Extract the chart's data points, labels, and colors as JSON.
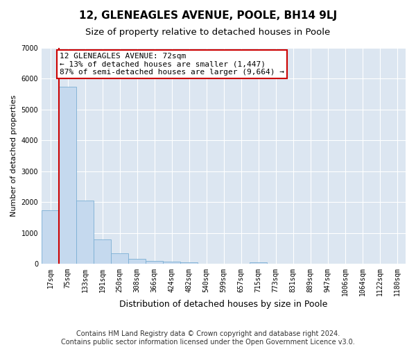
{
  "title": "12, GLENEAGLES AVENUE, POOLE, BH14 9LJ",
  "subtitle": "Size of property relative to detached houses in Poole",
  "xlabel": "Distribution of detached houses by size in Poole",
  "ylabel": "Number of detached properties",
  "bar_labels": [
    "17sqm",
    "75sqm",
    "133sqm",
    "191sqm",
    "250sqm",
    "308sqm",
    "366sqm",
    "424sqm",
    "482sqm",
    "540sqm",
    "599sqm",
    "657sqm",
    "715sqm",
    "773sqm",
    "831sqm",
    "889sqm",
    "947sqm",
    "1006sqm",
    "1064sqm",
    "1122sqm",
    "1180sqm"
  ],
  "bar_values": [
    1750,
    5750,
    2050,
    800,
    350,
    175,
    100,
    80,
    60,
    0,
    0,
    0,
    60,
    0,
    0,
    0,
    0,
    0,
    0,
    0,
    0
  ],
  "bar_color": "#c5d9ee",
  "bar_edge_color": "#7bafd4",
  "annotation_text_line1": "12 GLENEAGLES AVENUE: 72sqm",
  "annotation_text_line2": "← 13% of detached houses are smaller (1,447)",
  "annotation_text_line3": "87% of semi-detached houses are larger (9,664) →",
  "annotation_box_facecolor": "#ffffff",
  "annotation_box_edgecolor": "#cc0000",
  "vline_color": "#cc0000",
  "ylim": [
    0,
    7000
  ],
  "yticks": [
    0,
    1000,
    2000,
    3000,
    4000,
    5000,
    6000,
    7000
  ],
  "footer_line1": "Contains HM Land Registry data © Crown copyright and database right 2024.",
  "footer_line2": "Contains public sector information licensed under the Open Government Licence v3.0.",
  "plot_bg_color": "#dce6f1",
  "grid_color": "#ffffff",
  "title_fontsize": 11,
  "subtitle_fontsize": 9.5,
  "xlabel_fontsize": 9,
  "ylabel_fontsize": 8,
  "tick_fontsize": 7,
  "footer_fontsize": 7,
  "annotation_fontsize": 8
}
